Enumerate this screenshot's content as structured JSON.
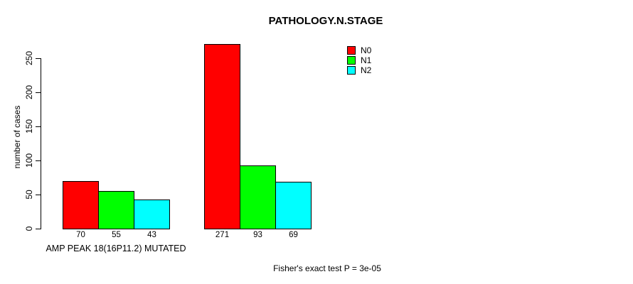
{
  "title": "PATHOLOGY.N.STAGE",
  "chart_data": {
    "type": "bar",
    "title": "PATHOLOGY.N.STAGE",
    "xlabel": "",
    "ylabel": "number of cases",
    "ylim": [
      0,
      250
    ],
    "yticks": [
      "0",
      "50",
      "100",
      "150",
      "200",
      "250"
    ],
    "grid": false,
    "legend_position": "top-right",
    "series": [
      {
        "name": "N0",
        "color": "#ff0000"
      },
      {
        "name": "N1",
        "color": "#00ff00"
      },
      {
        "name": "N2",
        "color": "#00ffff"
      }
    ],
    "groups": [
      {
        "label": "AMP PEAK 18(16P11.2) MUTATED",
        "values": [
          70,
          55,
          43
        ],
        "value_labels": [
          "70",
          "55",
          "43"
        ]
      },
      {
        "label": "",
        "values": [
          271,
          93,
          69
        ],
        "value_labels": [
          "271",
          "93",
          "69"
        ]
      }
    ],
    "footnote": "Fisher's exact test P = 3e-05"
  }
}
